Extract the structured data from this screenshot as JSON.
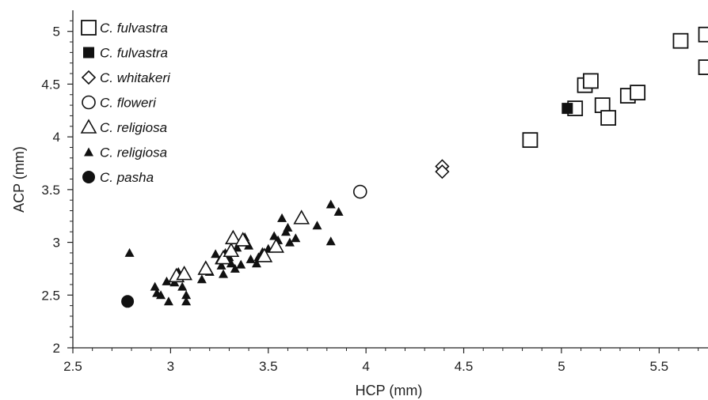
{
  "chart_data": {
    "type": "scatter",
    "xlabel": "HCP (mm)",
    "ylabel": "ACP (mm)",
    "xlim": [
      2.5,
      5.75
    ],
    "ylim": [
      2,
      5.2
    ],
    "x_ticks": [
      "2.5",
      "3",
      "3.5",
      "4",
      "4.5",
      "5",
      "5.5"
    ],
    "y_ticks": [
      "2",
      "2.5",
      "3",
      "3.5",
      "4",
      "4.5",
      "5"
    ],
    "x_tick_values": [
      2.5,
      3,
      3.5,
      4,
      4.5,
      5,
      5.5
    ],
    "y_tick_values": [
      2,
      2.5,
      3,
      3.5,
      4,
      4.5,
      5
    ],
    "grid": false,
    "legend_position": "top-left",
    "series": [
      {
        "name": "C. fulvastra",
        "marker": "open-square",
        "points": [
          [
            4.84,
            3.97
          ],
          [
            5.07,
            4.27
          ],
          [
            5.12,
            4.49
          ],
          [
            5.15,
            4.53
          ],
          [
            5.21,
            4.3
          ],
          [
            5.24,
            4.18
          ],
          [
            5.34,
            4.39
          ],
          [
            5.39,
            4.42
          ],
          [
            5.61,
            4.91
          ],
          [
            5.74,
            4.97
          ],
          [
            5.74,
            4.66
          ]
        ]
      },
      {
        "name": "C. fulvastra",
        "marker": "filled-square",
        "points": [
          [
            5.03,
            4.27
          ]
        ]
      },
      {
        "name": "C. whitakeri",
        "marker": "open-diamond",
        "points": [
          [
            4.39,
            3.72
          ],
          [
            4.39,
            3.67
          ]
        ]
      },
      {
        "name": "C. floweri",
        "marker": "open-circle",
        "points": [
          [
            3.97,
            3.48
          ]
        ]
      },
      {
        "name": "C. religiosa",
        "marker": "open-triangle",
        "points": [
          [
            3.03,
            2.68
          ],
          [
            3.07,
            2.7
          ],
          [
            3.18,
            2.75
          ],
          [
            3.27,
            2.85
          ],
          [
            3.31,
            2.92
          ],
          [
            3.32,
            3.04
          ],
          [
            3.37,
            3.02
          ],
          [
            3.48,
            2.87
          ],
          [
            3.54,
            2.96
          ],
          [
            3.67,
            3.23
          ]
        ]
      },
      {
        "name": "C. religiosa",
        "marker": "filled-triangle",
        "points": [
          [
            2.79,
            2.9
          ],
          [
            2.92,
            2.58
          ],
          [
            2.93,
            2.52
          ],
          [
            2.95,
            2.5
          ],
          [
            2.98,
            2.63
          ],
          [
            2.99,
            2.44
          ],
          [
            3.02,
            2.62
          ],
          [
            3.04,
            2.72
          ],
          [
            3.06,
            2.58
          ],
          [
            3.08,
            2.5
          ],
          [
            3.08,
            2.44
          ],
          [
            3.16,
            2.65
          ],
          [
            3.18,
            2.76
          ],
          [
            3.2,
            2.72
          ],
          [
            3.23,
            2.89
          ],
          [
            3.25,
            2.83
          ],
          [
            3.26,
            2.78
          ],
          [
            3.27,
            2.7
          ],
          [
            3.28,
            2.9
          ],
          [
            3.3,
            2.86
          ],
          [
            3.31,
            2.8
          ],
          [
            3.33,
            2.75
          ],
          [
            3.34,
            2.95
          ],
          [
            3.36,
            2.79
          ],
          [
            3.38,
            3.05
          ],
          [
            3.4,
            2.97
          ],
          [
            3.41,
            2.84
          ],
          [
            3.44,
            2.8
          ],
          [
            3.45,
            2.86
          ],
          [
            3.47,
            2.91
          ],
          [
            3.5,
            2.94
          ],
          [
            3.53,
            3.06
          ],
          [
            3.55,
            3.02
          ],
          [
            3.57,
            3.23
          ],
          [
            3.59,
            3.1
          ],
          [
            3.6,
            3.14
          ],
          [
            3.61,
            3.0
          ],
          [
            3.64,
            3.04
          ],
          [
            3.75,
            3.16
          ],
          [
            3.82,
            3.36
          ],
          [
            3.82,
            3.01
          ],
          [
            3.86,
            3.29
          ]
        ]
      },
      {
        "name": "C. pasha",
        "marker": "filled-circle",
        "points": [
          [
            2.78,
            2.44
          ]
        ]
      }
    ]
  }
}
